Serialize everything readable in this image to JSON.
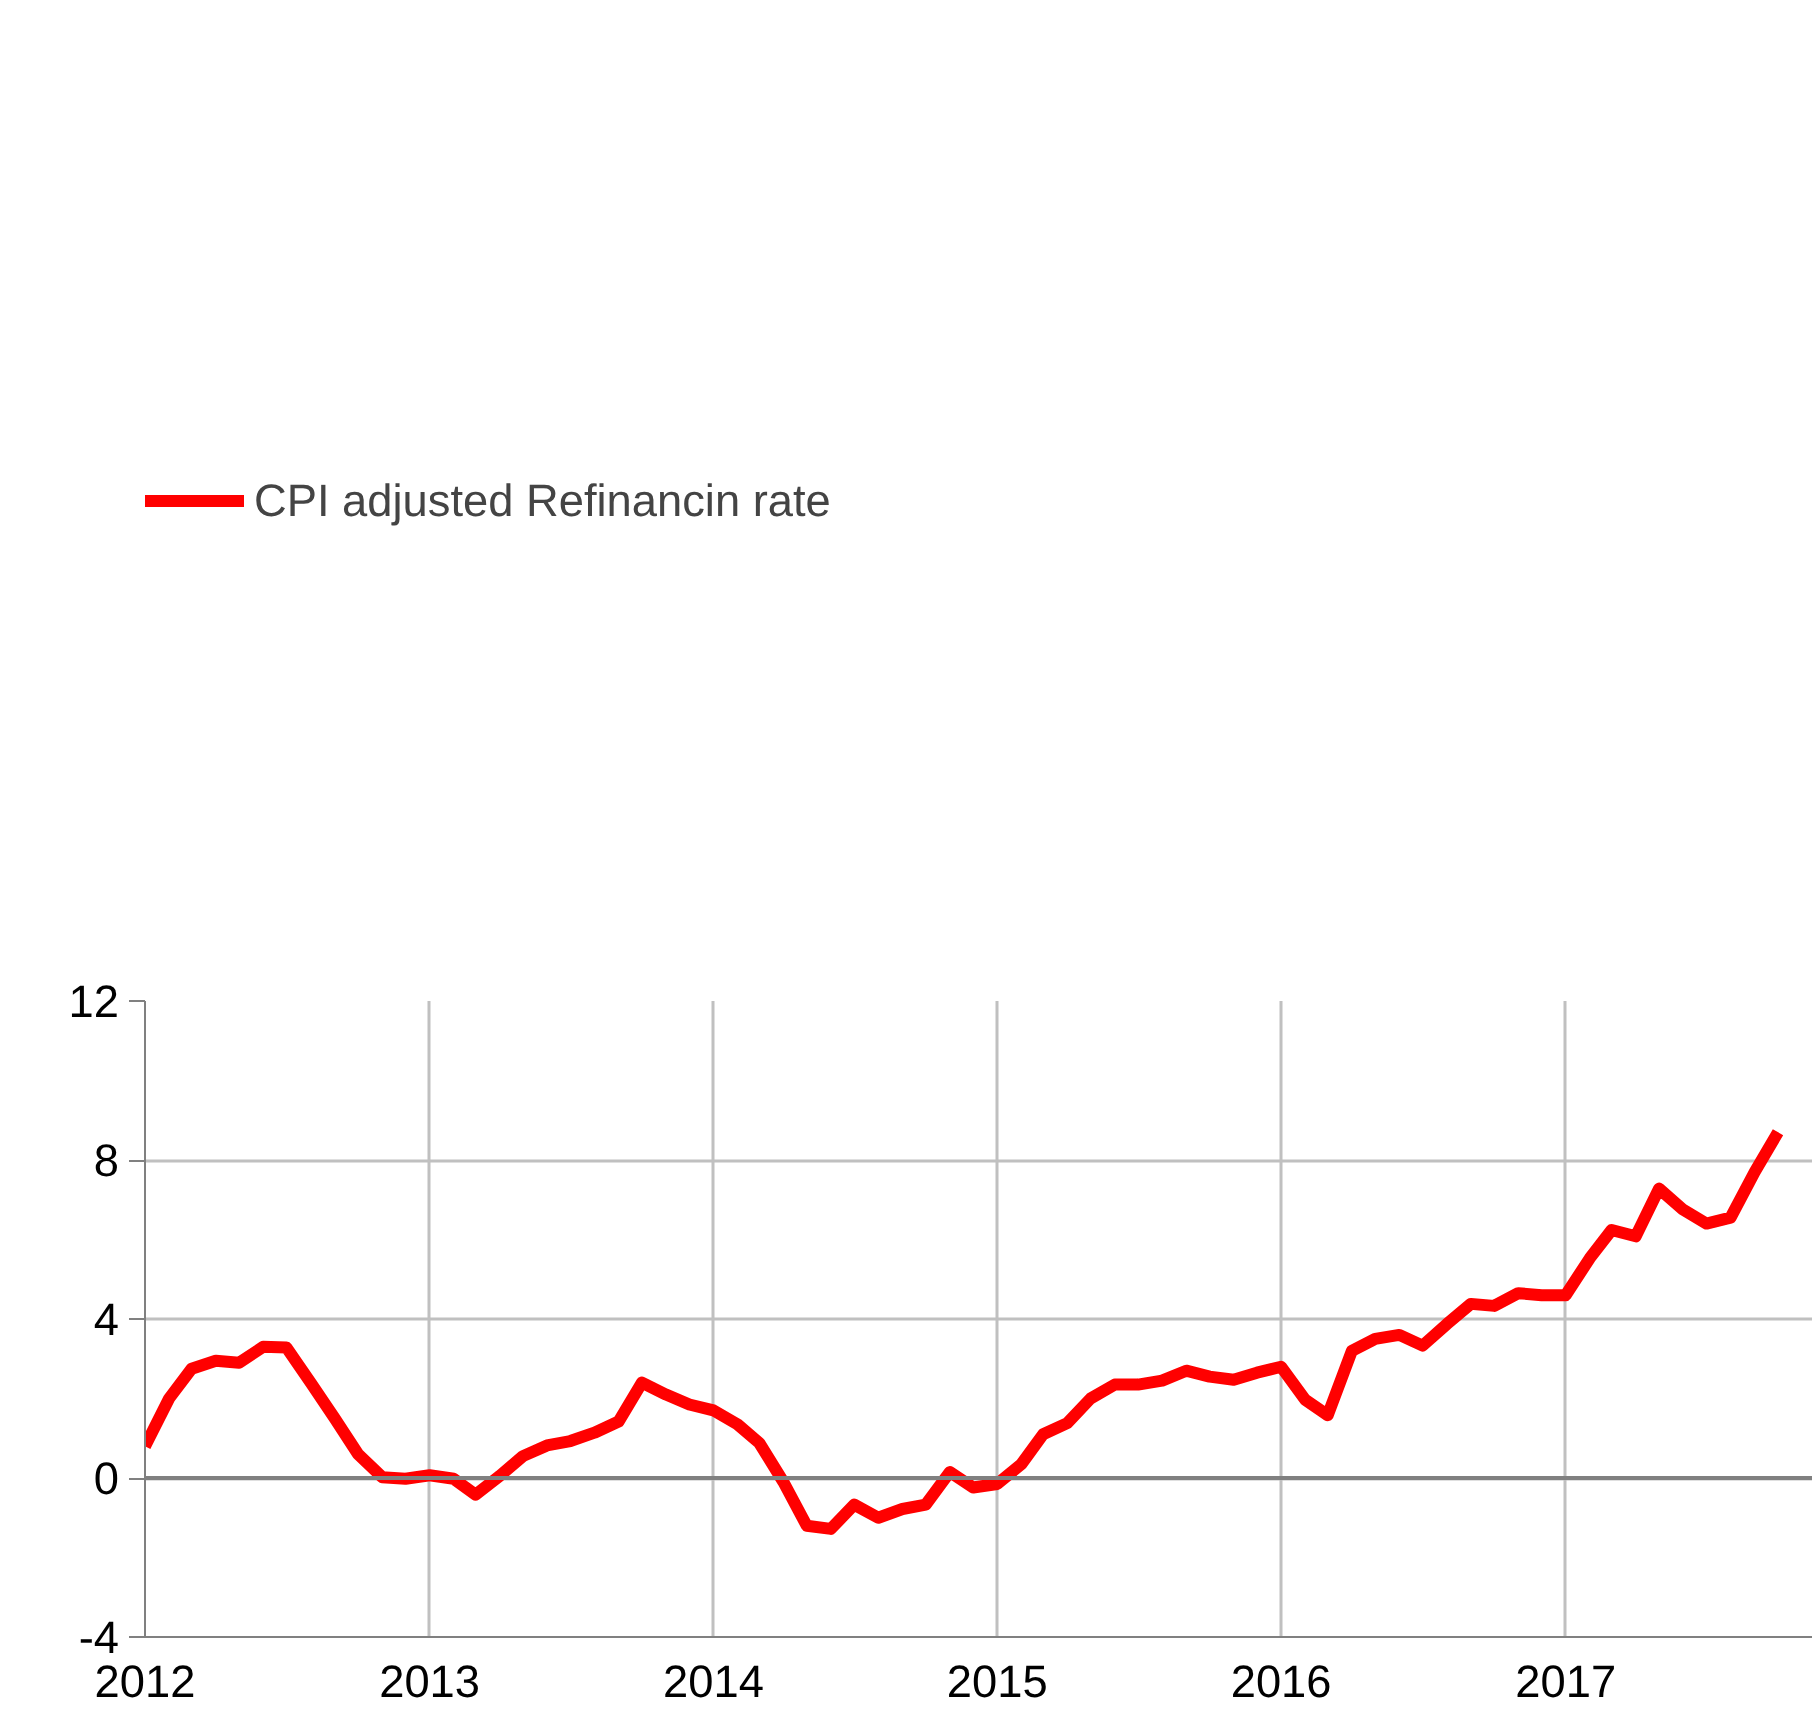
{
  "chart_data": {
    "type": "line",
    "x": [
      "2012-01",
      "2012-02",
      "2012-03",
      "2012-04",
      "2012-05",
      "2012-06",
      "2012-07",
      "2012-08",
      "2012-09",
      "2012-10",
      "2012-11",
      "2012-12",
      "2013-01",
      "2013-02",
      "2013-03",
      "2013-04",
      "2013-05",
      "2013-06",
      "2013-07",
      "2013-08",
      "2013-09",
      "2013-10",
      "2013-11",
      "2013-12",
      "2014-01",
      "2014-02",
      "2014-03",
      "2014-04",
      "2014-05",
      "2014-06",
      "2014-07",
      "2014-08",
      "2014-09",
      "2014-10",
      "2014-11",
      "2014-12",
      "2015-01",
      "2015-02",
      "2015-03",
      "2015-04",
      "2015-05",
      "2015-06",
      "2015-07",
      "2015-08",
      "2015-09",
      "2015-10",
      "2015-11",
      "2015-12",
      "2016-01",
      "2016-02",
      "2016-03",
      "2016-04",
      "2016-05",
      "2016-06",
      "2016-07",
      "2016-08",
      "2016-09",
      "2016-10",
      "2016-11",
      "2016-12",
      "2017-01",
      "2017-02",
      "2017-03",
      "2017-04",
      "2017-05",
      "2017-06",
      "2017-07",
      "2017-08",
      "2017-09",
      "2017-10"
    ],
    "series": [
      {
        "name": "CPI adjusted Refinancin rate",
        "color": "#ff0000",
        "values": [
          0.8,
          2.0,
          2.75,
          2.95,
          2.9,
          3.3,
          3.28,
          2.4,
          1.5,
          0.6,
          0.02,
          -0.02,
          0.07,
          -0.02,
          -0.42,
          0.05,
          0.55,
          0.82,
          0.93,
          1.14,
          1.42,
          2.4,
          2.1,
          1.85,
          1.7,
          1.35,
          0.88,
          -0.1,
          -1.2,
          -1.28,
          -0.67,
          -1.0,
          -0.78,
          -0.67,
          0.15,
          -0.24,
          -0.15,
          0.35,
          1.1,
          1.38,
          2.0,
          2.35,
          2.35,
          2.45,
          2.7,
          2.55,
          2.47,
          2.65,
          2.8,
          1.97,
          1.58,
          3.2,
          3.5,
          3.6,
          3.33,
          3.87,
          4.38,
          4.33,
          4.65,
          4.6,
          4.6,
          5.53,
          6.24,
          6.08,
          7.28,
          6.75,
          6.4,
          6.55,
          7.7,
          8.7
        ]
      }
    ],
    "xlim": [
      "2012-01",
      "2017-11-15"
    ],
    "xticks": [
      {
        "value": "2012",
        "label": "2012"
      },
      {
        "value": "2013",
        "label": "2013"
      },
      {
        "value": "2014",
        "label": "2014"
      },
      {
        "value": "2015",
        "label": "2015"
      },
      {
        "value": "2016",
        "label": "2016"
      },
      {
        "value": "2017",
        "label": "2017"
      }
    ],
    "ylim": [
      -4,
      12
    ],
    "yticks": [
      -4,
      0,
      4,
      8,
      12
    ],
    "grid": true,
    "legend": "top left",
    "line_style": "solid",
    "marker": "none"
  }
}
